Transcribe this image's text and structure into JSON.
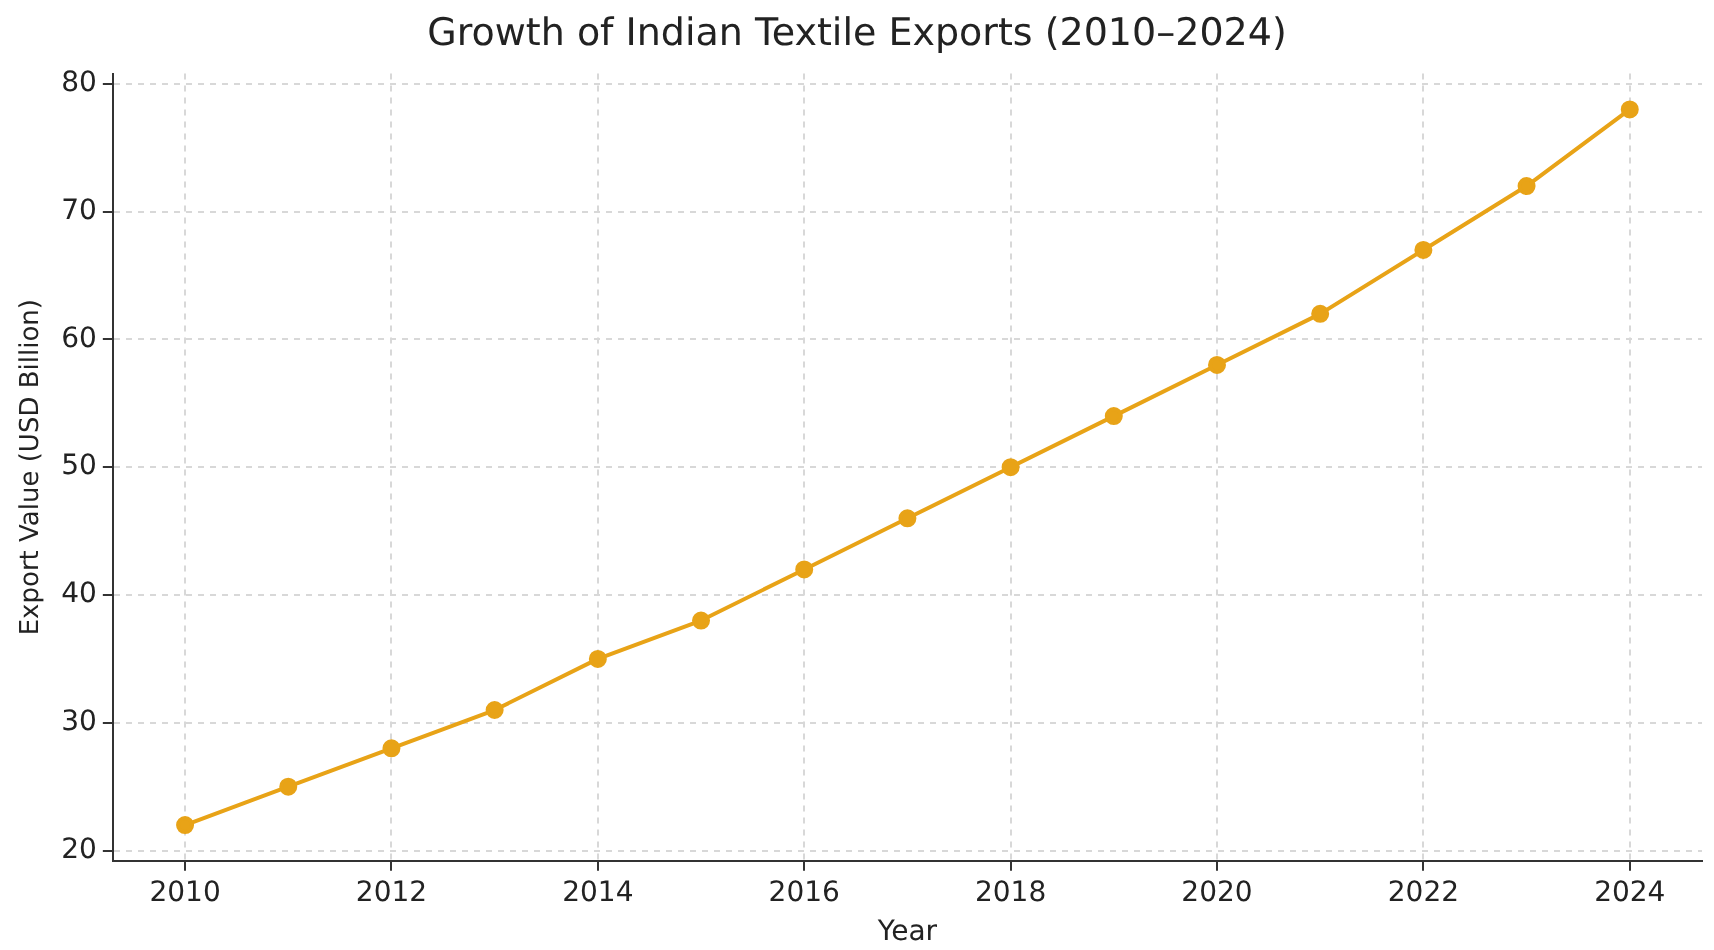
{
  "chart_data": {
    "type": "line",
    "title": "Growth of Indian Textile Exports (2010–2024)",
    "xlabel": "Year",
    "ylabel": "Export Value (USD Billion)",
    "x": [
      2010,
      2011,
      2012,
      2013,
      2014,
      2015,
      2016,
      2017,
      2018,
      2019,
      2020,
      2021,
      2022,
      2023,
      2024
    ],
    "series": [
      {
        "color": "#e8a317",
        "values": [
          22,
          25,
          28,
          31,
          35,
          38,
          42,
          46,
          50,
          54,
          58,
          62,
          67,
          72,
          78
        ]
      }
    ],
    "xlim": [
      2009.3,
      2024.7
    ],
    "xticks": [
      2010,
      2012,
      2014,
      2016,
      2018,
      2020,
      2022,
      2024
    ],
    "ylim": [
      19.2,
      80.8
    ],
    "yticks": [
      20,
      30,
      40,
      50,
      60,
      70,
      80
    ],
    "grid": true,
    "marker": "circle",
    "line_style": "solid",
    "legend": false
  }
}
